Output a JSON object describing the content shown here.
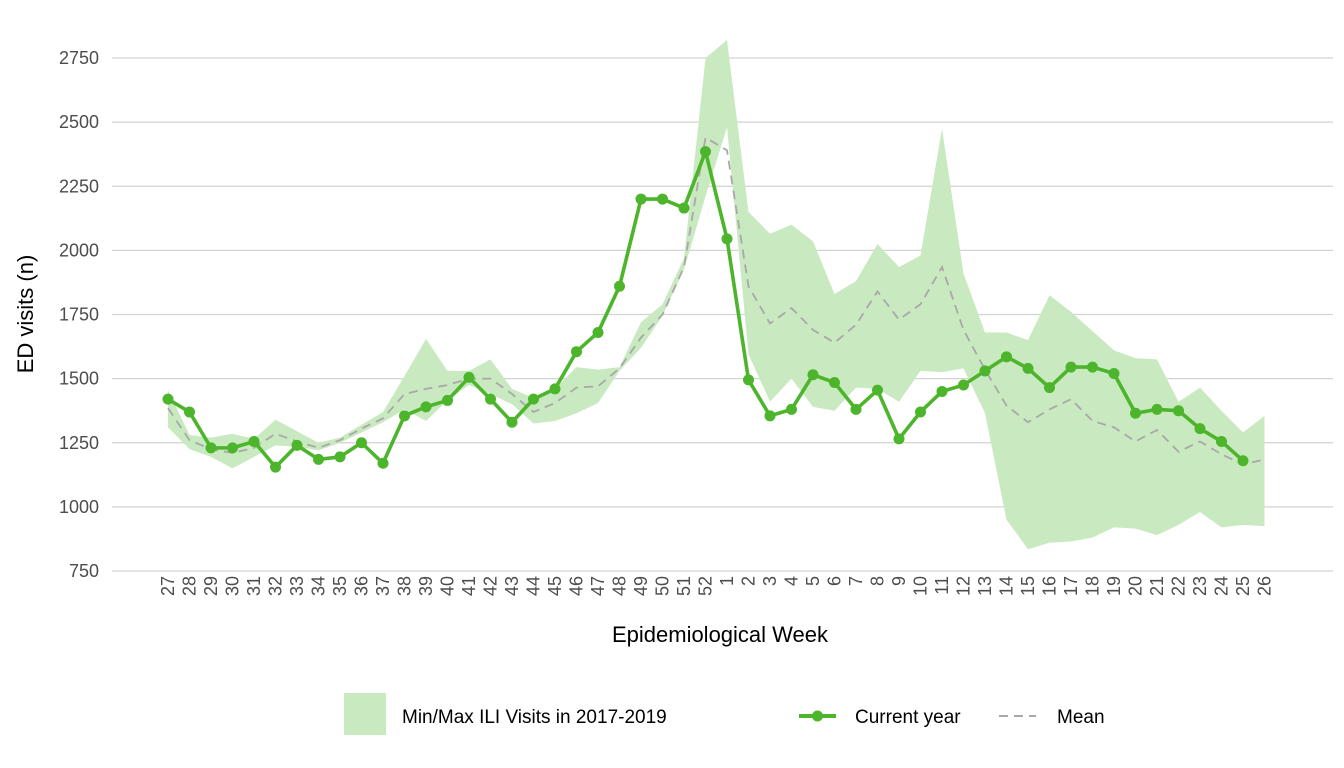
{
  "chart_data": {
    "type": "line",
    "title": "",
    "xlabel": "Epidemiological Week",
    "ylabel": "ED visits (n)",
    "categories": [
      "27",
      "28",
      "29",
      "30",
      "31",
      "32",
      "33",
      "34",
      "35",
      "36",
      "37",
      "38",
      "39",
      "40",
      "41",
      "42",
      "43",
      "44",
      "45",
      "46",
      "47",
      "48",
      "49",
      "50",
      "51",
      "52",
      "1",
      "2",
      "3",
      "4",
      "5",
      "6",
      "7",
      "8",
      "9",
      "10",
      "11",
      "12",
      "13",
      "14",
      "15",
      "16",
      "17",
      "18",
      "19",
      "20",
      "21",
      "22",
      "23",
      "24",
      "25",
      "26"
    ],
    "ylim": [
      750,
      2850
    ],
    "yticks": [
      750,
      1000,
      1250,
      1500,
      1750,
      2000,
      2250,
      2500,
      2750
    ],
    "grid": "horizontal",
    "legend_position": "bottom",
    "series": [
      {
        "name": "Min/Max ILI Visits in 2017-2019",
        "kind": "band",
        "color": "#c9eac0",
        "min": [
          1310,
          1225,
          1195,
          1150,
          1195,
          1240,
          1235,
          1220,
          1250,
          1290,
          1330,
          1380,
          1335,
          1415,
          1475,
          1440,
          1400,
          1325,
          1335,
          1365,
          1405,
          1530,
          1620,
          1745,
          1925,
          2210,
          2480,
          1595,
          1410,
          1500,
          1390,
          1375,
          1465,
          1460,
          1410,
          1530,
          1525,
          1540,
          1365,
          950,
          835,
          860,
          865,
          880,
          920,
          915,
          890,
          930,
          980,
          920,
          930,
          925
        ],
        "max": [
          1455,
          1280,
          1270,
          1285,
          1265,
          1340,
          1295,
          1250,
          1270,
          1320,
          1370,
          1510,
          1655,
          1530,
          1530,
          1575,
          1460,
          1425,
          1460,
          1545,
          1535,
          1545,
          1720,
          1790,
          1970,
          2750,
          2820,
          2150,
          2065,
          2100,
          2035,
          1830,
          1880,
          2025,
          1935,
          1980,
          2475,
          1910,
          1680,
          1680,
          1650,
          1825,
          1760,
          1685,
          1610,
          1580,
          1575,
          1410,
          1465,
          1375,
          1290,
          1355
        ]
      },
      {
        "name": "Current year",
        "kind": "line",
        "color": "#4cb52b",
        "values": [
          1420,
          1370,
          1230,
          1230,
          1255,
          1155,
          1240,
          1185,
          1195,
          1250,
          1170,
          1355,
          1390,
          1415,
          1505,
          1420,
          1330,
          1420,
          1460,
          1605,
          1680,
          1860,
          2200,
          2200,
          2165,
          2385,
          2045,
          1495,
          1355,
          1380,
          1515,
          1485,
          1380,
          1455,
          1265,
          1370,
          1450,
          1475,
          1530,
          1585,
          1540,
          1465,
          1545,
          1545,
          1520,
          1365,
          1380,
          1375,
          1305,
          1255,
          1180,
          null
        ]
      },
      {
        "name": "Mean",
        "kind": "dashed",
        "color": "#a8a8a8",
        "values": [
          1385,
          1260,
          1225,
          1210,
          1230,
          1285,
          1255,
          1230,
          1260,
          1305,
          1345,
          1440,
          1460,
          1475,
          1500,
          1500,
          1440,
          1370,
          1405,
          1465,
          1470,
          1540,
          1660,
          1750,
          1935,
          2440,
          2390,
          1860,
          1715,
          1775,
          1690,
          1640,
          1710,
          1840,
          1730,
          1790,
          1935,
          1690,
          1535,
          1395,
          1330,
          1380,
          1420,
          1335,
          1310,
          1255,
          1300,
          1215,
          1255,
          1205,
          1165,
          1185
        ]
      }
    ]
  }
}
